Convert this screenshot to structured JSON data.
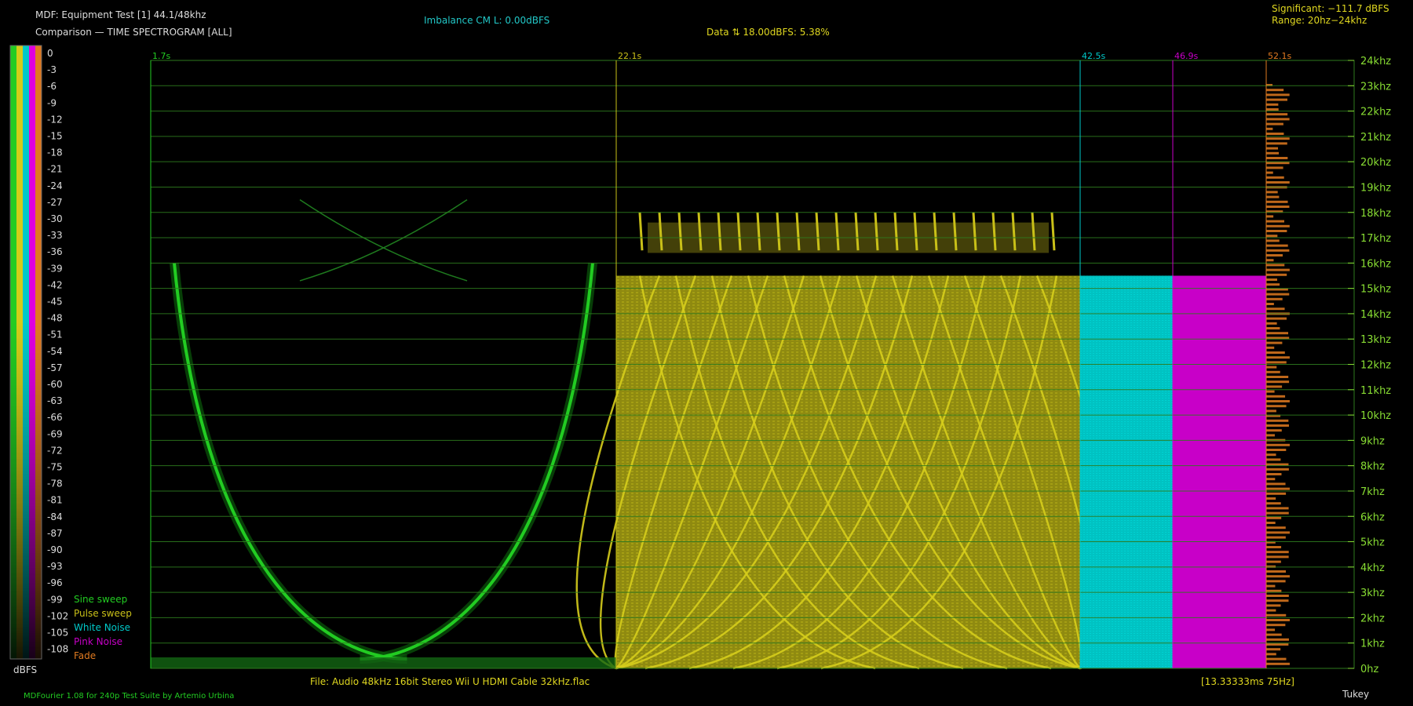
{
  "header": {
    "title_line": "MDF: Equipment Test [1] 44.1/48khz",
    "subtitle_line": "Comparison — TIME SPECTROGRAM [ALL]",
    "imbalance": "Imbalance CM L: 0.00dBFS",
    "data_info": "Data ⇅ 18.00dBFS: 5.38%",
    "significant": "Significant: −111.7 dBFS",
    "range": "Range: 20hz−24khz"
  },
  "colors": {
    "background": "#000000",
    "grid": "#2e7a1e",
    "sine": "#22cc22",
    "pulse": "#c9c018",
    "white_noise": "#00c8c8",
    "pink_noise": "#c800c8",
    "fade": "#e07a20",
    "axis_text": "#88dd33",
    "header_cyan": "#22c8c8",
    "header_yellow": "#e0d820"
  },
  "footer": {
    "file": "File: Audio    48kHz 16bit Stereo Wii U HDMI Cable 32kHz.flac",
    "frame_info": "[13.33333ms 75Hz]",
    "credit": "MDFourier 1.08 for 240p Test Suite by Artemio Urbina",
    "window": "Tukey"
  },
  "chart_data": {
    "type": "heatmap",
    "title": "Comparison — TIME SPECTROGRAM [ALL]",
    "colorbar": {
      "label": "dBFS",
      "ticks": [
        "0",
        "-3",
        "-6",
        "-9",
        "-12",
        "-15",
        "-18",
        "-21",
        "-24",
        "-27",
        "-30",
        "-33",
        "-36",
        "-39",
        "-42",
        "-45",
        "-48",
        "-51",
        "-54",
        "-57",
        "-60",
        "-63",
        "-66",
        "-69",
        "-72",
        "-75",
        "-78",
        "-81",
        "-84",
        "-87",
        "-90",
        "-93",
        "-96",
        "-99",
        "-102",
        "-105",
        "-108"
      ],
      "range": [
        -108,
        0
      ]
    },
    "y_axis": {
      "ticks": [
        "24khz",
        "23khz",
        "22khz",
        "21khz",
        "20khz",
        "19khz",
        "18khz",
        "17khz",
        "16khz",
        "15khz",
        "14khz",
        "13khz",
        "12khz",
        "11khz",
        "10khz",
        "9khz",
        "8khz",
        "7khz",
        "6khz",
        "5khz",
        "4khz",
        "3khz",
        "2khz",
        "1khz",
        "0hz"
      ],
      "values_khz": [
        24,
        23,
        22,
        21,
        20,
        19,
        18,
        17,
        16,
        15,
        14,
        13,
        12,
        11,
        10,
        9,
        8,
        7,
        6,
        5,
        4,
        3,
        2,
        1,
        0
      ],
      "ylim_khz": [
        0,
        24
      ]
    },
    "x_axis": {
      "markers": [
        "1.7s",
        "22.1s",
        "42.5s",
        "46.9s",
        "52.1s"
      ],
      "xlim_s": [
        1.7,
        52.1
      ]
    },
    "series": [
      {
        "name": "Sine sweep",
        "start": "1.7s",
        "end": "22.1s",
        "color": "#22cc22"
      },
      {
        "name": "Pulse sweep",
        "start": "22.1s",
        "end": "42.5s",
        "color": "#c9c018"
      },
      {
        "name": "White Noise",
        "start": "42.5s",
        "end": "46.9s",
        "color": "#00c8c8"
      },
      {
        "name": "Pink Noise",
        "start": "46.9s",
        "end": "52.1s",
        "color": "#c800c8"
      },
      {
        "name": "Fade",
        "start": "52.1s",
        "end": "",
        "color": "#e07a20"
      }
    ],
    "cutoff_khz": 15.5
  }
}
